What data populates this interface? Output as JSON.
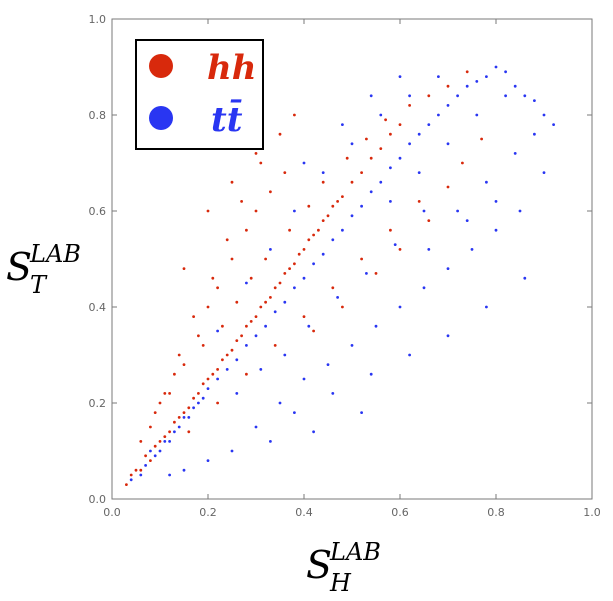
{
  "chart_data": {
    "type": "scatter",
    "title": "",
    "xlabel": {
      "main": "S",
      "sup": "LAB",
      "sub": "H"
    },
    "ylabel": {
      "main": "S",
      "sup": "LAB",
      "sub": "T"
    },
    "xlim": [
      0,
      1
    ],
    "ylim": [
      0,
      1
    ],
    "xticks": [
      "0.0",
      "0.2",
      "0.4",
      "0.6",
      "0.8",
      "1.0"
    ],
    "yticks": [
      "0.0",
      "0.2",
      "0.4",
      "0.6",
      "0.8",
      "1.0"
    ],
    "grid": false,
    "legend": {
      "placement": "top-left",
      "entries": [
        {
          "label": "hh",
          "color": "#d8290c"
        },
        {
          "label": "tt̄",
          "color": "#2936f2"
        }
      ]
    },
    "series": [
      {
        "name": "hh",
        "color": "#d8290c",
        "points": [
          [
            0.03,
            0.03
          ],
          [
            0.04,
            0.05
          ],
          [
            0.05,
            0.06
          ],
          [
            0.06,
            0.06
          ],
          [
            0.07,
            0.09
          ],
          [
            0.08,
            0.08
          ],
          [
            0.09,
            0.11
          ],
          [
            0.1,
            0.12
          ],
          [
            0.11,
            0.13
          ],
          [
            0.12,
            0.14
          ],
          [
            0.13,
            0.16
          ],
          [
            0.14,
            0.17
          ],
          [
            0.15,
            0.18
          ],
          [
            0.16,
            0.19
          ],
          [
            0.17,
            0.21
          ],
          [
            0.18,
            0.22
          ],
          [
            0.19,
            0.24
          ],
          [
            0.2,
            0.25
          ],
          [
            0.21,
            0.26
          ],
          [
            0.22,
            0.27
          ],
          [
            0.23,
            0.29
          ],
          [
            0.24,
            0.3
          ],
          [
            0.25,
            0.31
          ],
          [
            0.26,
            0.33
          ],
          [
            0.27,
            0.34
          ],
          [
            0.28,
            0.36
          ],
          [
            0.29,
            0.37
          ],
          [
            0.3,
            0.38
          ],
          [
            0.31,
            0.4
          ],
          [
            0.32,
            0.41
          ],
          [
            0.33,
            0.42
          ],
          [
            0.34,
            0.44
          ],
          [
            0.35,
            0.45
          ],
          [
            0.36,
            0.47
          ],
          [
            0.37,
            0.48
          ],
          [
            0.38,
            0.49
          ],
          [
            0.39,
            0.51
          ],
          [
            0.4,
            0.52
          ],
          [
            0.41,
            0.54
          ],
          [
            0.42,
            0.55
          ],
          [
            0.43,
            0.56
          ],
          [
            0.44,
            0.58
          ],
          [
            0.45,
            0.59
          ],
          [
            0.46,
            0.61
          ],
          [
            0.47,
            0.62
          ],
          [
            0.48,
            0.63
          ],
          [
            0.5,
            0.66
          ],
          [
            0.52,
            0.68
          ],
          [
            0.54,
            0.71
          ],
          [
            0.56,
            0.73
          ],
          [
            0.58,
            0.76
          ],
          [
            0.6,
            0.78
          ],
          [
            0.12,
            0.22
          ],
          [
            0.15,
            0.28
          ],
          [
            0.18,
            0.34
          ],
          [
            0.2,
            0.4
          ],
          [
            0.22,
            0.44
          ],
          [
            0.25,
            0.5
          ],
          [
            0.28,
            0.56
          ],
          [
            0.3,
            0.6
          ],
          [
            0.33,
            0.64
          ],
          [
            0.36,
            0.68
          ],
          [
            0.1,
            0.2
          ],
          [
            0.14,
            0.3
          ],
          [
            0.17,
            0.38
          ],
          [
            0.21,
            0.46
          ],
          [
            0.24,
            0.54
          ],
          [
            0.27,
            0.62
          ],
          [
            0.31,
            0.7
          ],
          [
            0.35,
            0.76
          ],
          [
            0.38,
            0.8
          ],
          [
            0.16,
            0.14
          ],
          [
            0.22,
            0.2
          ],
          [
            0.28,
            0.26
          ],
          [
            0.34,
            0.32
          ],
          [
            0.4,
            0.38
          ],
          [
            0.46,
            0.44
          ],
          [
            0.52,
            0.5
          ],
          [
            0.58,
            0.56
          ],
          [
            0.64,
            0.62
          ],
          [
            0.06,
            0.12
          ],
          [
            0.08,
            0.15
          ],
          [
            0.09,
            0.18
          ],
          [
            0.11,
            0.22
          ],
          [
            0.13,
            0.26
          ],
          [
            0.19,
            0.32
          ],
          [
            0.23,
            0.36
          ],
          [
            0.26,
            0.41
          ],
          [
            0.29,
            0.46
          ],
          [
            0.32,
            0.5
          ],
          [
            0.37,
            0.56
          ],
          [
            0.41,
            0.61
          ],
          [
            0.44,
            0.66
          ],
          [
            0.49,
            0.71
          ],
          [
            0.53,
            0.75
          ],
          [
            0.57,
            0.79
          ],
          [
            0.62,
            0.82
          ],
          [
            0.66,
            0.84
          ],
          [
            0.7,
            0.86
          ],
          [
            0.74,
            0.89
          ],
          [
            0.2,
            0.6
          ],
          [
            0.25,
            0.66
          ],
          [
            0.3,
            0.72
          ],
          [
            0.15,
            0.48
          ],
          [
            0.42,
            0.35
          ],
          [
            0.48,
            0.4
          ],
          [
            0.55,
            0.47
          ],
          [
            0.6,
            0.52
          ],
          [
            0.66,
            0.58
          ],
          [
            0.7,
            0.65
          ],
          [
            0.73,
            0.7
          ],
          [
            0.77,
            0.75
          ]
        ]
      },
      {
        "name": "tt̄",
        "color": "#2936f2",
        "points": [
          [
            0.04,
            0.04
          ],
          [
            0.06,
            0.05
          ],
          [
            0.07,
            0.07
          ],
          [
            0.08,
            0.1
          ],
          [
            0.09,
            0.09
          ],
          [
            0.1,
            0.1
          ],
          [
            0.11,
            0.12
          ],
          [
            0.12,
            0.12
          ],
          [
            0.13,
            0.14
          ],
          [
            0.14,
            0.15
          ],
          [
            0.15,
            0.17
          ],
          [
            0.16,
            0.17
          ],
          [
            0.17,
            0.19
          ],
          [
            0.18,
            0.2
          ],
          [
            0.19,
            0.21
          ],
          [
            0.2,
            0.23
          ],
          [
            0.22,
            0.25
          ],
          [
            0.24,
            0.27
          ],
          [
            0.26,
            0.29
          ],
          [
            0.28,
            0.32
          ],
          [
            0.3,
            0.34
          ],
          [
            0.32,
            0.36
          ],
          [
            0.34,
            0.39
          ],
          [
            0.36,
            0.41
          ],
          [
            0.38,
            0.44
          ],
          [
            0.4,
            0.46
          ],
          [
            0.42,
            0.49
          ],
          [
            0.44,
            0.51
          ],
          [
            0.46,
            0.54
          ],
          [
            0.48,
            0.56
          ],
          [
            0.5,
            0.59
          ],
          [
            0.52,
            0.61
          ],
          [
            0.54,
            0.64
          ],
          [
            0.56,
            0.66
          ],
          [
            0.58,
            0.69
          ],
          [
            0.6,
            0.71
          ],
          [
            0.62,
            0.74
          ],
          [
            0.64,
            0.76
          ],
          [
            0.66,
            0.78
          ],
          [
            0.68,
            0.8
          ],
          [
            0.7,
            0.82
          ],
          [
            0.72,
            0.84
          ],
          [
            0.74,
            0.86
          ],
          [
            0.76,
            0.87
          ],
          [
            0.78,
            0.88
          ],
          [
            0.8,
            0.9
          ],
          [
            0.82,
            0.89
          ],
          [
            0.84,
            0.86
          ],
          [
            0.86,
            0.84
          ],
          [
            0.88,
            0.83
          ],
          [
            0.9,
            0.8
          ],
          [
            0.35,
            0.2
          ],
          [
            0.4,
            0.25
          ],
          [
            0.45,
            0.28
          ],
          [
            0.5,
            0.32
          ],
          [
            0.55,
            0.36
          ],
          [
            0.6,
            0.4
          ],
          [
            0.65,
            0.44
          ],
          [
            0.7,
            0.48
          ],
          [
            0.75,
            0.52
          ],
          [
            0.8,
            0.56
          ],
          [
            0.85,
            0.6
          ],
          [
            0.3,
            0.15
          ],
          [
            0.38,
            0.18
          ],
          [
            0.46,
            0.22
          ],
          [
            0.54,
            0.26
          ],
          [
            0.62,
            0.3
          ],
          [
            0.7,
            0.34
          ],
          [
            0.78,
            0.4
          ],
          [
            0.86,
            0.46
          ],
          [
            0.25,
            0.1
          ],
          [
            0.33,
            0.12
          ],
          [
            0.42,
            0.14
          ],
          [
            0.52,
            0.18
          ],
          [
            0.2,
            0.08
          ],
          [
            0.15,
            0.06
          ],
          [
            0.12,
            0.05
          ],
          [
            0.22,
            0.35
          ],
          [
            0.28,
            0.45
          ],
          [
            0.33,
            0.52
          ],
          [
            0.38,
            0.6
          ],
          [
            0.44,
            0.68
          ],
          [
            0.5,
            0.74
          ],
          [
            0.56,
            0.8
          ],
          [
            0.62,
            0.84
          ],
          [
            0.68,
            0.88
          ],
          [
            0.58,
            0.62
          ],
          [
            0.64,
            0.68
          ],
          [
            0.7,
            0.74
          ],
          [
            0.76,
            0.8
          ],
          [
            0.82,
            0.84
          ],
          [
            0.72,
            0.6
          ],
          [
            0.78,
            0.66
          ],
          [
            0.84,
            0.72
          ],
          [
            0.88,
            0.76
          ],
          [
            0.66,
            0.52
          ],
          [
            0.74,
            0.58
          ],
          [
            0.8,
            0.62
          ],
          [
            0.9,
            0.68
          ],
          [
            0.92,
            0.78
          ],
          [
            0.6,
            0.88
          ],
          [
            0.54,
            0.84
          ],
          [
            0.48,
            0.78
          ],
          [
            0.4,
            0.7
          ],
          [
            0.26,
            0.22
          ],
          [
            0.31,
            0.27
          ],
          [
            0.36,
            0.3
          ],
          [
            0.41,
            0.36
          ],
          [
            0.47,
            0.42
          ],
          [
            0.53,
            0.47
          ],
          [
            0.59,
            0.53
          ],
          [
            0.65,
            0.6
          ]
        ]
      }
    ]
  }
}
